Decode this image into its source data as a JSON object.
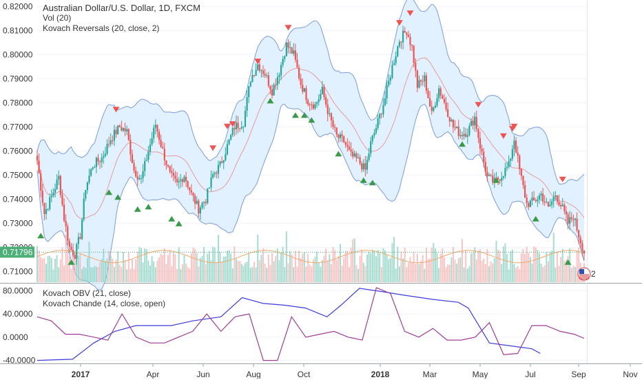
{
  "chart_data": [
    {
      "type": "candlestick",
      "title": "Australian Dollar/U.S. Dollar, 1D, FXCM",
      "indicators": [
        "Vol (20)",
        "Kovach Reversals (20, close, 2)"
      ],
      "y_ticks": [
        "0.82000",
        "0.81000",
        "0.80000",
        "0.79000",
        "0.78000",
        "0.77000",
        "0.76000",
        "0.75000",
        "0.74000",
        "0.73000",
        "0.72000",
        "0.71000"
      ],
      "ylim": [
        0.7055,
        0.8215
      ],
      "last_price_label": "0.71796",
      "last_price": 0.71796,
      "price_path": [
        [
          0,
          0.756
        ],
        [
          4,
          0.734
        ],
        [
          8,
          0.741
        ],
        [
          12,
          0.749
        ],
        [
          15,
          0.732
        ],
        [
          18,
          0.72
        ],
        [
          21,
          0.717
        ],
        [
          24,
          0.725
        ],
        [
          27,
          0.745
        ],
        [
          31,
          0.754
        ],
        [
          36,
          0.757
        ],
        [
          41,
          0.765
        ],
        [
          46,
          0.77
        ],
        [
          50,
          0.768
        ],
        [
          54,
          0.752
        ],
        [
          58,
          0.748
        ],
        [
          62,
          0.76
        ],
        [
          66,
          0.771
        ],
        [
          70,
          0.76
        ],
        [
          74,
          0.75
        ],
        [
          78,
          0.746
        ],
        [
          82,
          0.75
        ],
        [
          86,
          0.742
        ],
        [
          90,
          0.736
        ],
        [
          94,
          0.74
        ],
        [
          98,
          0.75
        ],
        [
          102,
          0.754
        ],
        [
          106,
          0.762
        ],
        [
          110,
          0.77
        ],
        [
          115,
          0.772
        ],
        [
          119,
          0.79
        ],
        [
          123,
          0.796
        ],
        [
          127,
          0.792
        ],
        [
          131,
          0.785
        ],
        [
          135,
          0.793
        ],
        [
          139,
          0.804
        ],
        [
          143,
          0.8
        ],
        [
          147,
          0.788
        ],
        [
          151,
          0.781
        ],
        [
          155,
          0.779
        ],
        [
          159,
          0.785
        ],
        [
          163,
          0.774
        ],
        [
          167,
          0.766
        ],
        [
          171,
          0.764
        ],
        [
          175,
          0.758
        ],
        [
          179,
          0.756
        ],
        [
          183,
          0.752
        ],
        [
          186,
          0.763
        ],
        [
          190,
          0.772
        ],
        [
          194,
          0.782
        ],
        [
          198,
          0.795
        ],
        [
          202,
          0.806
        ],
        [
          206,
          0.81
        ],
        [
          209,
          0.803
        ],
        [
          212,
          0.787
        ],
        [
          216,
          0.79
        ],
        [
          220,
          0.775
        ],
        [
          224,
          0.786
        ],
        [
          228,
          0.778
        ],
        [
          232,
          0.77
        ],
        [
          236,
          0.767
        ],
        [
          240,
          0.768
        ],
        [
          244,
          0.774
        ],
        [
          247,
          0.762
        ],
        [
          251,
          0.749
        ],
        [
          255,
          0.747
        ],
        [
          259,
          0.75
        ],
        [
          263,
          0.754
        ],
        [
          266,
          0.765
        ],
        [
          269,
          0.752
        ],
        [
          273,
          0.738
        ],
        [
          277,
          0.739
        ],
        [
          281,
          0.742
        ],
        [
          285,
          0.736
        ],
        [
          289,
          0.742
        ],
        [
          293,
          0.736
        ],
        [
          296,
          0.73
        ],
        [
          299,
          0.733
        ],
        [
          302,
          0.725
        ],
        [
          305,
          0.718
        ]
      ],
      "reversals_up": [
        [
          2,
          0.726
        ],
        [
          19,
          0.715
        ],
        [
          40,
          0.744
        ],
        [
          45,
          0.742
        ],
        [
          56,
          0.737
        ],
        [
          62,
          0.738
        ],
        [
          75,
          0.733
        ],
        [
          79,
          0.731
        ],
        [
          130,
          0.782
        ],
        [
          144,
          0.776
        ],
        [
          149,
          0.776
        ],
        [
          153,
          0.774
        ],
        [
          168,
          0.76
        ],
        [
          182,
          0.749
        ],
        [
          187,
          0.748
        ],
        [
          237,
          0.764
        ],
        [
          256,
          0.749
        ],
        [
          278,
          0.733
        ],
        [
          296,
          0.715
        ]
      ],
      "reversals_down": [
        [
          44,
          0.776
        ],
        [
          98,
          0.76
        ],
        [
          106,
          0.769
        ],
        [
          109,
          0.77
        ],
        [
          123,
          0.796
        ],
        [
          140,
          0.81
        ],
        [
          202,
          0.812
        ],
        [
          208,
          0.816
        ],
        [
          246,
          0.778
        ],
        [
          260,
          0.765
        ],
        [
          265,
          0.768
        ],
        [
          266,
          0.769
        ],
        [
          293,
          0.747
        ]
      ],
      "volume_max": 0.7268,
      "volume_base": 0.7055
    },
    {
      "type": "line",
      "series": [
        {
          "name": "Kovach OBV (21, close)",
          "color": "#3b3bdc",
          "points": [
            [
              0,
              -40
            ],
            [
              25,
              -38
            ],
            [
              40,
              -10
            ],
            [
              55,
              10
            ],
            [
              70,
              20
            ],
            [
              95,
              20
            ],
            [
              110,
              28
            ],
            [
              130,
              35
            ],
            [
              145,
              68
            ],
            [
              160,
              58
            ],
            [
              175,
              55
            ],
            [
              190,
              50
            ],
            [
              205,
              35
            ],
            [
              215,
              55
            ],
            [
              228,
              84
            ],
            [
              245,
              78
            ],
            [
              260,
              72
            ],
            [
              280,
              65
            ],
            [
              298,
              60
            ],
            [
              305,
              50
            ],
            [
              320,
              -10
            ],
            [
              335,
              -15
            ],
            [
              350,
              -20
            ],
            [
              356,
              -28
            ]
          ]
        },
        {
          "name": "Kovach Chande (14, close, open)",
          "color": "#a03c98",
          "points": [
            [
              0,
              35
            ],
            [
              10,
              28
            ],
            [
              20,
              5
            ],
            [
              30,
              5
            ],
            [
              40,
              0
            ],
            [
              50,
              -5
            ],
            [
              60,
              40
            ],
            [
              70,
              0
            ],
            [
              80,
              -10
            ],
            [
              90,
              -10
            ],
            [
              100,
              0
            ],
            [
              110,
              10
            ],
            [
              120,
              40
            ],
            [
              130,
              10
            ],
            [
              140,
              35
            ],
            [
              150,
              40
            ],
            [
              160,
              -40
            ],
            [
              170,
              -40
            ],
            [
              180,
              35
            ],
            [
              190,
              0
            ],
            [
              200,
              5
            ],
            [
              210,
              10
            ],
            [
              220,
              0
            ],
            [
              230,
              -5
            ],
            [
              240,
              85
            ],
            [
              250,
              75
            ],
            [
              260,
              10
            ],
            [
              270,
              0
            ],
            [
              280,
              15
            ],
            [
              290,
              -5
            ],
            [
              300,
              -5
            ],
            [
              310,
              0
            ],
            [
              320,
              25
            ],
            [
              330,
              -30
            ],
            [
              340,
              -28
            ],
            [
              350,
              20
            ],
            [
              360,
              20
            ],
            [
              370,
              10
            ],
            [
              380,
              5
            ],
            [
              387,
              -2
            ]
          ]
        }
      ],
      "y_ticks": [
        "80.0000",
        "40.0000",
        "0.0000",
        "-40.0000"
      ],
      "ylim": [
        -44,
        91
      ]
    }
  ],
  "x_ticks": [
    "2017",
    "Apr",
    "Jun",
    "Aug",
    "Oct",
    "2018",
    "Mar",
    "May",
    "Jul",
    "Sep",
    "Nov"
  ],
  "x_tick_bold": [
    "2017",
    "2018"
  ],
  "colors": {
    "up": "#26a69a",
    "down": "#ef5350",
    "band_fill": "#dbeeff",
    "band_line": "#7b9bdc",
    "basis": "#e89a9a",
    "vol_up": "#8fd3c3",
    "vol_down": "#f6b5b5",
    "vol_ma": "#f1a86b",
    "axis_bg": "#ffffff",
    "last_price_bg": "#4caf78"
  },
  "badge_text": "2",
  "legend_main": {
    "title": "Australian Dollar/U.S. Dollar, 1D, FXCM",
    "vol": "Vol (20)",
    "rev": "Kovach Reversals (20, close, 2)"
  },
  "legend_sub": {
    "obv": "Kovach OBV (21, close)",
    "chande": "Kovach Chande (14, close, open)"
  }
}
